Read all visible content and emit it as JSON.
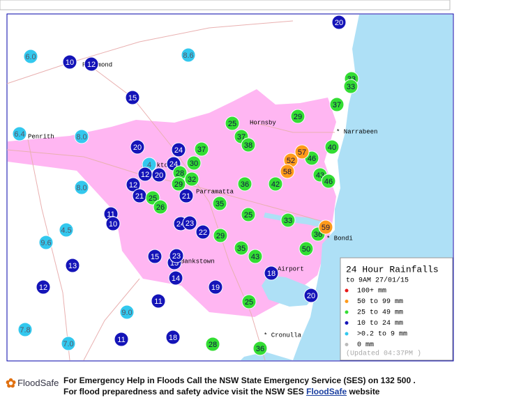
{
  "map": {
    "legend": {
      "title": "24 Hour Rainfalls",
      "subtitle": "to 9AM 27/01/15",
      "entries": [
        {
          "label": "100+ mm",
          "color": "#e81818"
        },
        {
          "label": "50  to 99 mm",
          "color": "#ff9a1a"
        },
        {
          "label": "25  to 49 mm",
          "color": "#33dd33"
        },
        {
          "label": "10  to 24 mm",
          "color": "#1414b8"
        },
        {
          "label": ">0.2 to 9 mm",
          "color": "#33c8ee"
        },
        {
          "label": "0 mm",
          "color": "#bbbbbb"
        }
      ],
      "updated": "(Updated 04:37PM  )"
    },
    "places": [
      "Richmond",
      "Penrith",
      "Hornsby",
      "Blacktown",
      "* Narrabeen",
      "Parramatta",
      "* Bondi",
      "Bankstown",
      "Airport",
      "* Cronulla"
    ],
    "stations": [
      {
        "value": "20",
        "category": 3
      },
      {
        "value": "6.0",
        "category": 4
      },
      {
        "value": "10",
        "category": 3
      },
      {
        "value": "12",
        "category": 3
      },
      {
        "value": "8.6",
        "category": 4
      },
      {
        "value": "15",
        "category": 3
      },
      {
        "value": "33",
        "category": 2
      },
      {
        "value": "33",
        "category": 2
      },
      {
        "value": "37",
        "category": 2
      },
      {
        "value": "29",
        "category": 2
      },
      {
        "value": "25",
        "category": 2
      },
      {
        "value": "37",
        "category": 2
      },
      {
        "value": "38",
        "category": 2
      },
      {
        "value": "6.4",
        "category": 4
      },
      {
        "value": "8.0",
        "category": 4
      },
      {
        "value": "20",
        "category": 3
      },
      {
        "value": "24",
        "category": 3
      },
      {
        "value": "37",
        "category": 2
      },
      {
        "value": "40",
        "category": 2
      },
      {
        "value": "46",
        "category": 2
      },
      {
        "value": "57",
        "category": 1
      },
      {
        "value": "52",
        "category": 1
      },
      {
        "value": "58",
        "category": 1
      },
      {
        "value": "30",
        "category": 2
      },
      {
        "value": "4",
        "category": 4
      },
      {
        "value": "24",
        "category": 3
      },
      {
        "value": "28",
        "category": 2
      },
      {
        "value": "12",
        "category": 3
      },
      {
        "value": "20",
        "category": 3
      },
      {
        "value": "32",
        "category": 2
      },
      {
        "value": "29",
        "category": 2
      },
      {
        "value": "43",
        "category": 2
      },
      {
        "value": "46",
        "category": 2
      },
      {
        "value": "36",
        "category": 2
      },
      {
        "value": "42",
        "category": 2
      },
      {
        "value": "8.0",
        "category": 4
      },
      {
        "value": "12",
        "category": 3
      },
      {
        "value": "21",
        "category": 3
      },
      {
        "value": "25",
        "category": 2
      },
      {
        "value": "26",
        "category": 2
      },
      {
        "value": "21",
        "category": 3
      },
      {
        "value": "35",
        "category": 2
      },
      {
        "value": "25",
        "category": 2
      },
      {
        "value": "11",
        "category": 3
      },
      {
        "value": "10",
        "category": 3
      },
      {
        "value": "24",
        "category": 3
      },
      {
        "value": "23",
        "category": 3
      },
      {
        "value": "22",
        "category": 3
      },
      {
        "value": "29",
        "category": 2
      },
      {
        "value": "33",
        "category": 2
      },
      {
        "value": "36",
        "category": 2
      },
      {
        "value": "59",
        "category": 1
      },
      {
        "value": "4.5",
        "category": 4
      },
      {
        "value": "9.6",
        "category": 4
      },
      {
        "value": "35",
        "category": 2
      },
      {
        "value": "43",
        "category": 2
      },
      {
        "value": "50",
        "category": 2
      },
      {
        "value": "15",
        "category": 3
      },
      {
        "value": "15",
        "category": 3
      },
      {
        "value": "23",
        "category": 3
      },
      {
        "value": "13",
        "category": 3
      },
      {
        "value": "18",
        "category": 3
      },
      {
        "value": "14",
        "category": 3
      },
      {
        "value": "19",
        "category": 3
      },
      {
        "value": "12",
        "category": 3
      },
      {
        "value": "20",
        "category": 3
      },
      {
        "value": "11",
        "category": 3
      },
      {
        "value": "25",
        "category": 2
      },
      {
        "value": "9.0",
        "category": 4
      },
      {
        "value": "7.8",
        "category": 4
      },
      {
        "value": "11",
        "category": 3
      },
      {
        "value": "18",
        "category": 3
      },
      {
        "value": "7.0",
        "category": 4
      },
      {
        "value": "28",
        "category": 2
      },
      {
        "value": "36",
        "category": 2
      }
    ]
  },
  "footer": {
    "logo": "FloodSafe",
    "line1": "For Emergency Help in Floods Call the NSW State Emergency Service (SES) on 132 500 .",
    "line2_before": "For flood preparedness and safety advice visit the NSW SES",
    "line2_link": "FloodSafe",
    "line2_after": "website"
  }
}
